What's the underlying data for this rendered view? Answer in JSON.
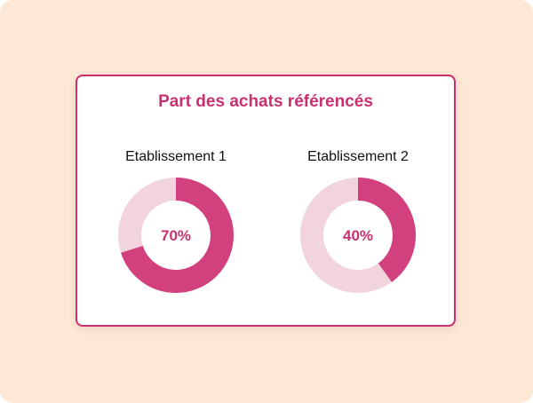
{
  "title": "Part des achats référencés",
  "colors": {
    "background": "#fde8d6",
    "accent": "#c9306f",
    "filled": "#d2407e",
    "track": "#f2d4de"
  },
  "chart_data": [
    {
      "type": "pie",
      "variant": "donut",
      "title": "Etablissement 1",
      "value": 70,
      "label": "70%",
      "max": 100
    },
    {
      "type": "pie",
      "variant": "donut",
      "title": "Etablissement 2",
      "value": 40,
      "label": "40%",
      "max": 100
    }
  ]
}
